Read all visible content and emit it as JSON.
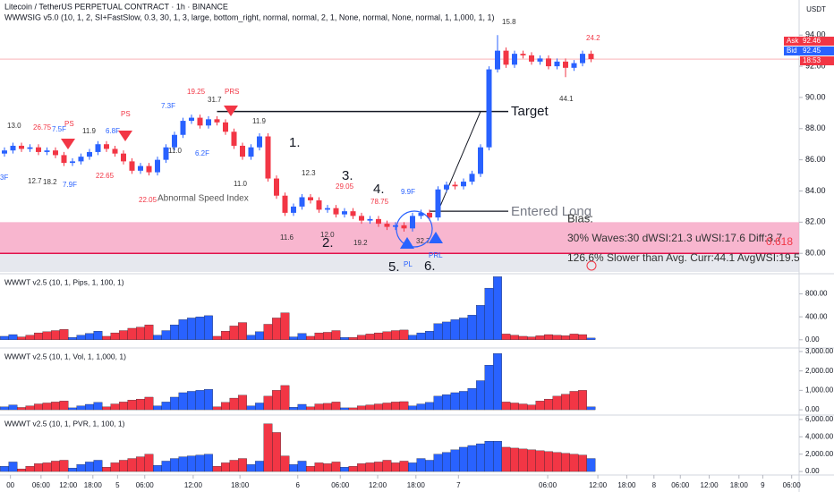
{
  "chart_data": {
    "type": "candlestick",
    "title": "Litecoin / TetherUS PERPETUAL CONTRACT · 1h · BINANCE",
    "indicator": "WWWSIG v5.0 (10, 1, 2, SI+FastSlow, 0.3, 30, 1, 3, large, bottom_right, normal, normal, 2, 1, None, normal, None, normal, 1, 1,000, 1, 1)",
    "currency": "USDT",
    "up_color": "#2962ff",
    "down_color": "#f23645",
    "ylim": [
      78.75,
      96.25
    ],
    "yticks": [
      {
        "value": 80,
        "label": "80.00"
      },
      {
        "value": 82,
        "label": "82.00"
      },
      {
        "value": 84,
        "label": "84.00"
      },
      {
        "value": 86,
        "label": "86.00"
      },
      {
        "value": 88,
        "label": "88.00"
      },
      {
        "value": 90,
        "label": "90.00"
      },
      {
        "value": 92,
        "label": "92.00"
      },
      {
        "value": 94,
        "label": "94.00"
      }
    ],
    "xticks": [
      {
        "value": 0.7,
        "label": "00"
      },
      {
        "value": 4.3,
        "label": "06:00"
      },
      {
        "value": 7.5,
        "label": "12:00"
      },
      {
        "value": 10.4,
        "label": "18:00"
      },
      {
        "value": 13.3,
        "label": "5"
      },
      {
        "value": 16.5,
        "label": "06:00"
      },
      {
        "value": 22.2,
        "label": "12:00"
      },
      {
        "value": 27.7,
        "label": "18:00"
      },
      {
        "value": 34.5,
        "label": "6"
      },
      {
        "value": 39.5,
        "label": "06:00"
      },
      {
        "value": 43.9,
        "label": "12:00"
      },
      {
        "value": 48.4,
        "label": "18:00"
      },
      {
        "value": 53.4,
        "label": "7"
      },
      {
        "value": 63.9,
        "label": "06:00"
      },
      {
        "value": 69.8,
        "label": "12:00"
      },
      {
        "value": 73.2,
        "label": "18:00"
      },
      {
        "value": 76.4,
        "label": "8"
      },
      {
        "value": 79.5,
        "label": "06:00"
      },
      {
        "value": 82.9,
        "label": "12:00"
      },
      {
        "value": 86.4,
        "label": "18:00"
      },
      {
        "value": 89.2,
        "label": "9"
      },
      {
        "value": 92.6,
        "label": "06:00"
      }
    ],
    "open": [
      86.4,
      86.6,
      86.9,
      86.7,
      86.8,
      86.5,
      86.6,
      86.3,
      85.8,
      85.9,
      86.2,
      86.5,
      87.0,
      86.7,
      86.4,
      85.9,
      85.3,
      85.6,
      85.2,
      86.0,
      86.8,
      87.6,
      88.5,
      88.7,
      88.2,
      88.6,
      88.4,
      87.8,
      86.9,
      86.2,
      86.8,
      87.5,
      84.8,
      83.7,
      82.6,
      83.0,
      83.6,
      83.4,
      82.8,
      82.9,
      82.5,
      82.7,
      82.4,
      82.1,
      82.2,
      81.9,
      81.7,
      81.8,
      81.6,
      82.4,
      82.6,
      82.3,
      84.1,
      84.4,
      84.3,
      84.6,
      85.1,
      86.8,
      91.8,
      93.0,
      92.1,
      92.8,
      92.7,
      92.3,
      92.5,
      92.0,
      92.3,
      91.9,
      92.2,
      92.8
    ],
    "high": [
      86.8,
      87.1,
      87.1,
      87.0,
      87.0,
      86.8,
      86.8,
      86.5,
      86.1,
      86.4,
      86.7,
      87.2,
      87.2,
      86.9,
      86.6,
      86.1,
      85.8,
      85.8,
      86.2,
      87.0,
      87.8,
      88.7,
      88.9,
      88.9,
      88.8,
      88.8,
      88.6,
      88.0,
      87.1,
      87.0,
      87.7,
      87.7,
      85.0,
      83.9,
      83.2,
      83.8,
      83.8,
      83.6,
      83.1,
      83.1,
      82.9,
      82.9,
      82.6,
      82.4,
      82.4,
      82.1,
      82.0,
      82.0,
      82.6,
      82.8,
      82.8,
      84.3,
      84.6,
      84.6,
      84.8,
      85.3,
      87.0,
      92.0,
      94.0,
      93.2,
      93.0,
      93.0,
      92.9,
      92.7,
      92.7,
      92.5,
      92.5,
      92.4,
      93.0,
      93.0
    ],
    "low": [
      86.2,
      86.4,
      86.5,
      86.5,
      86.3,
      86.3,
      86.1,
      85.6,
      85.6,
      85.7,
      86.0,
      86.3,
      86.5,
      86.2,
      85.7,
      85.1,
      85.1,
      85.0,
      85.0,
      85.8,
      86.6,
      87.4,
      88.3,
      88.0,
      88.0,
      88.2,
      87.6,
      86.7,
      86.0,
      86.0,
      86.6,
      84.6,
      83.5,
      82.4,
      82.4,
      82.8,
      83.2,
      82.6,
      82.6,
      82.3,
      82.3,
      82.2,
      81.9,
      81.9,
      81.7,
      81.5,
      81.5,
      81.4,
      81.4,
      82.2,
      82.1,
      82.1,
      83.9,
      84.1,
      84.1,
      84.4,
      84.9,
      86.6,
      91.6,
      91.9,
      91.9,
      92.5,
      92.1,
      92.1,
      91.8,
      91.8,
      91.3,
      91.7,
      92.0,
      92.26
    ],
    "close": [
      86.6,
      86.9,
      86.7,
      86.8,
      86.5,
      86.6,
      86.3,
      85.8,
      85.9,
      86.2,
      86.5,
      87.0,
      86.7,
      86.4,
      85.9,
      85.3,
      85.6,
      85.2,
      86.0,
      86.8,
      87.6,
      88.5,
      88.7,
      88.2,
      88.6,
      88.4,
      87.8,
      86.9,
      86.2,
      86.8,
      87.5,
      84.8,
      83.7,
      82.6,
      83.0,
      83.6,
      83.4,
      82.8,
      82.9,
      82.5,
      82.7,
      82.4,
      82.1,
      82.2,
      81.9,
      81.7,
      81.8,
      81.6,
      82.4,
      82.6,
      82.3,
      84.1,
      84.4,
      84.3,
      84.6,
      85.1,
      86.8,
      91.8,
      93.0,
      92.1,
      92.8,
      92.7,
      92.3,
      92.5,
      92.0,
      92.3,
      91.9,
      92.2,
      92.8,
      92.46
    ],
    "zone": [
      80,
      82
    ],
    "support_line": 80,
    "target_price": 89.1,
    "entry_price": 82.7,
    "quote": {
      "ask_label": "Ask",
      "ask": 92.46,
      "bid_label": "Bid",
      "bid": 92.45,
      "countdown": "18:53"
    },
    "annotations": [
      "13.0",
      "26.75",
      "PS",
      "7.5F",
      "11.9",
      "6.8F",
      "PS",
      "19.25",
      "PRS",
      "7.3F",
      "31.7",
      "11.9",
      "3F",
      "12.7",
      "18.2",
      "7.9F",
      "22.65",
      "22.05",
      "6.2F",
      "11.0",
      "11.0",
      "Abnormal Speed Index",
      "1.",
      "12.3",
      "3.",
      "29.05",
      "4.",
      "78.75",
      "9.9F",
      "11.6",
      "12.0",
      "2.",
      "19.2",
      "32.7",
      "5.",
      "PL",
      "6.",
      "PRL",
      "15.8",
      "24.2",
      "44.1",
      "Target",
      "Entered Long",
      "Bias:",
      "30% Waves:30 dWSI:21.3 uWSI:17.6 Diff:3.7",
      "0.618",
      "126.6% Slower than Avg. Curr:44.1 AvgWSI:19.5"
    ],
    "wave_colors": [
      "#2962ff",
      "#2962ff",
      "#f23645",
      "#f23645",
      "#f23645",
      "#f23645",
      "#f23645",
      "#f23645",
      "#2962ff",
      "#2962ff",
      "#2962ff",
      "#2962ff",
      "#f23645",
      "#f23645",
      "#f23645",
      "#f23645",
      "#f23645",
      "#f23645",
      "#2962ff",
      "#2962ff",
      "#2962ff",
      "#2962ff",
      "#2962ff",
      "#2962ff",
      "#2962ff",
      "#f23645",
      "#f23645",
      "#f23645",
      "#f23645",
      "#2962ff",
      "#2962ff",
      "#f23645",
      "#f23645",
      "#f23645",
      "#2962ff",
      "#2962ff",
      "#f23645",
      "#f23645",
      "#f23645",
      "#f23645",
      "#2962ff",
      "#f23645",
      "#f23645",
      "#f23645",
      "#f23645",
      "#f23645",
      "#f23645",
      "#f23645",
      "#2962ff",
      "#2962ff",
      "#2962ff",
      "#2962ff",
      "#2962ff",
      "#2962ff",
      "#2962ff",
      "#2962ff",
      "#2962ff",
      "#2962ff",
      "#2962ff",
      "#f23645",
      "#f23645",
      "#f23645",
      "#f23645",
      "#f23645",
      "#f23645",
      "#f23645",
      "#f23645",
      "#f23645",
      "#f23645",
      "#2962ff"
    ],
    "panels": [
      {
        "type": "bar",
        "title": "WWWT v2.5 (10, 1, Pips, 1, 100, 1)",
        "ylim": [
          -128,
          1120
        ],
        "yticks": [
          {
            "value": 0,
            "label": "0.00"
          },
          {
            "value": 400,
            "label": "400.00"
          },
          {
            "value": 800,
            "label": "800.00"
          }
        ],
        "values": [
          60,
          90,
          50,
          80,
          120,
          140,
          160,
          180,
          40,
          80,
          110,
          150,
          60,
          120,
          160,
          200,
          220,
          260,
          80,
          160,
          260,
          350,
          380,
          400,
          420,
          60,
          150,
          240,
          300,
          80,
          140,
          270,
          380,
          470,
          50,
          110,
          60,
          120,
          130,
          160,
          40,
          40,
          80,
          100,
          120,
          140,
          160,
          170,
          80,
          120,
          150,
          280,
          310,
          350,
          380,
          430,
          600,
          900,
          1100,
          100,
          80,
          60,
          50,
          70,
          90,
          80,
          70,
          100,
          90,
          30
        ]
      },
      {
        "type": "bar",
        "title": "WWWT v2.5 (10, 1, Vol, 1, 1,000, 1)",
        "ylim": [
          -227,
          3090
        ],
        "yticks": [
          {
            "value": 0,
            "label": "0.00"
          },
          {
            "value": 1000,
            "label": "1,000.00"
          },
          {
            "value": 2000,
            "label": "2,000.00"
          },
          {
            "value": 3000,
            "label": "3,000.00"
          }
        ],
        "values": [
          150,
          250,
          120,
          200,
          300,
          350,
          400,
          450,
          100,
          200,
          280,
          380,
          150,
          300,
          400,
          500,
          550,
          650,
          200,
          400,
          650,
          880,
          950,
          1000,
          1050,
          150,
          380,
          600,
          750,
          200,
          350,
          700,
          1000,
          1250,
          130,
          280,
          150,
          300,
          330,
          400,
          100,
          100,
          200,
          250,
          300,
          350,
          400,
          420,
          200,
          300,
          380,
          700,
          780,
          880,
          950,
          1100,
          1500,
          2300,
          2900,
          400,
          350,
          300,
          250,
          450,
          550,
          700,
          800,
          950,
          1000,
          150
        ]
      },
      {
        "type": "bar",
        "title": "WWWT v2.5 (10, 1, PVR, 1, 100, 1)",
        "ylim": [
          -300,
          6300
        ],
        "yticks": [
          {
            "value": 0,
            "label": "0.00"
          },
          {
            "value": 2000,
            "label": "2,000.00"
          },
          {
            "value": 4000,
            "label": "4,000.00"
          },
          {
            "value": 6000,
            "label": "6,000.00"
          }
        ],
        "values": [
          600,
          1100,
          300,
          600,
          900,
          1000,
          1200,
          1300,
          400,
          800,
          1100,
          1300,
          500,
          1000,
          1300,
          1500,
          1700,
          2000,
          700,
          1200,
          1500,
          1700,
          1800,
          1900,
          2000,
          600,
          1000,
          1300,
          1500,
          800,
          1200,
          5500,
          4500,
          1800,
          800,
          1200,
          600,
          1000,
          900,
          1100,
          500,
          600,
          900,
          1000,
          1100,
          1300,
          1000,
          1200,
          1000,
          1500,
          1300,
          2000,
          2200,
          2500,
          2800,
          3000,
          3200,
          3500,
          3500,
          2800,
          2700,
          2600,
          2500,
          2400,
          2300,
          2200,
          2100,
          2000,
          1900,
          1500
        ]
      }
    ]
  }
}
